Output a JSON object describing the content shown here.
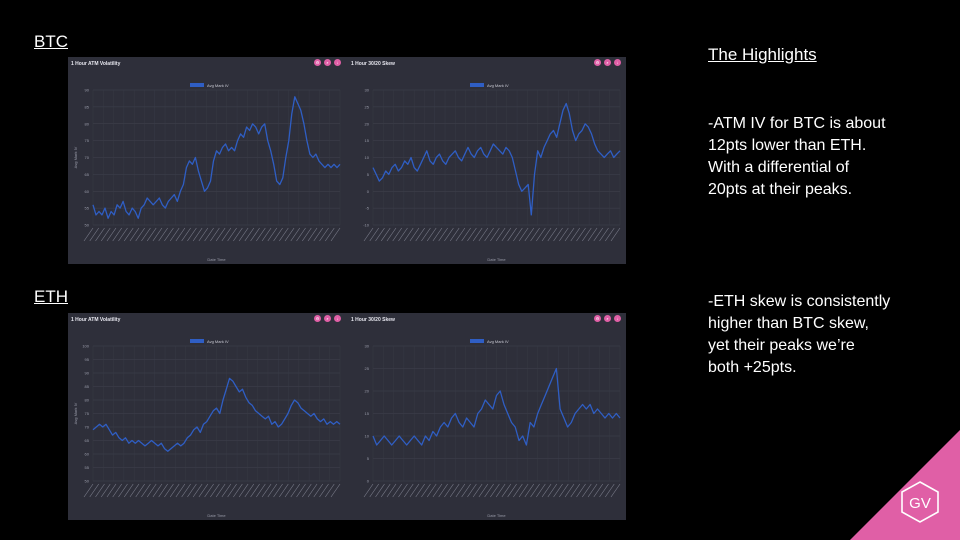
{
  "sections": [
    {
      "label": "BTC"
    },
    {
      "label": "ETH"
    }
  ],
  "highlights": {
    "title": "The Highlights",
    "note1": [
      "-ATM IV for BTC is about",
      "12pts lower than ETH.",
      "With a differential of",
      "20pts at their peaks."
    ],
    "note2": [
      "-ETH skew is consistently",
      "higher than BTC skew,",
      "yet their peaks we’re",
      "both +25pts."
    ]
  },
  "logo": {
    "text": "GV",
    "color": "#e05fa6"
  },
  "colors": {
    "panel": "#2e2f3a",
    "line": "#2f5ec4",
    "accent": "#e05fa6"
  },
  "chart_data": [
    {
      "id": "btc-atm",
      "type": "line",
      "title": "1 Hour ATM Volatility",
      "legend": "Avg Mark IV",
      "xlabel": "Date Time",
      "ylabel": "Avg Mark IV",
      "ylim": [
        50,
        90
      ],
      "yticks": [
        50,
        55,
        60,
        65,
        70,
        75,
        80,
        85,
        90
      ],
      "y": [
        56,
        53,
        54,
        53,
        55,
        52,
        54,
        53,
        56,
        55,
        57,
        54,
        53,
        55,
        54,
        52,
        55,
        56,
        58,
        57,
        56,
        57,
        58,
        56,
        55,
        57,
        58,
        59,
        57,
        60,
        62,
        67,
        69,
        68,
        70,
        66,
        63,
        60,
        61,
        63,
        69,
        72,
        71,
        73,
        74,
        72,
        73,
        72,
        75,
        77,
        76,
        79,
        78,
        80,
        79,
        77,
        79,
        80,
        75,
        72,
        68,
        63,
        62,
        64,
        70,
        75,
        83,
        88,
        86,
        84,
        80,
        75,
        71,
        70,
        71,
        69,
        68,
        67,
        68,
        67,
        68,
        67,
        68
      ]
    },
    {
      "id": "btc-skew",
      "type": "line",
      "title": "1 Hour 30/20 Skew",
      "legend": "Avg Mark IV",
      "xlabel": "Date Time",
      "ylabel": "",
      "ylim": [
        -10,
        30
      ],
      "yticks": [
        -10,
        -5,
        0,
        5,
        10,
        15,
        20,
        25,
        30
      ],
      "y": [
        7,
        5,
        3,
        4,
        6,
        5,
        7,
        8,
        6,
        7,
        9,
        8,
        10,
        7,
        6,
        8,
        10,
        12,
        9,
        8,
        10,
        11,
        9,
        8,
        10,
        11,
        12,
        10,
        9,
        11,
        13,
        11,
        10,
        12,
        13,
        11,
        10,
        12,
        14,
        13,
        12,
        11,
        13,
        12,
        10,
        6,
        2,
        0,
        1,
        2,
        -7,
        5,
        12,
        10,
        13,
        15,
        17,
        18,
        16,
        20,
        24,
        26,
        23,
        18,
        15,
        17,
        18,
        20,
        19,
        17,
        14,
        12,
        11,
        10,
        11,
        12,
        10,
        11,
        12
      ]
    },
    {
      "id": "eth-atm",
      "type": "line",
      "title": "1 Hour ATM Volatility",
      "legend": "Avg Mark IV",
      "xlabel": "Date Time",
      "ylabel": "Avg Mark IV",
      "ylim": [
        50,
        100
      ],
      "yticks": [
        50,
        55,
        60,
        65,
        70,
        75,
        80,
        85,
        90,
        95,
        100
      ],
      "y": [
        69,
        70,
        71,
        70,
        71,
        69,
        67,
        68,
        66,
        65,
        66,
        64,
        65,
        64,
        65,
        64,
        63,
        64,
        65,
        64,
        63,
        64,
        62,
        61,
        62,
        63,
        64,
        63,
        64,
        66,
        67,
        69,
        70,
        68,
        71,
        72,
        74,
        76,
        77,
        75,
        80,
        84,
        88,
        87,
        85,
        83,
        84,
        81,
        79,
        78,
        76,
        75,
        74,
        73,
        74,
        71,
        72,
        70,
        71,
        73,
        75,
        78,
        80,
        79,
        77,
        76,
        75,
        74,
        75,
        73,
        72,
        73,
        71,
        72,
        71,
        72,
        71
      ]
    },
    {
      "id": "eth-skew",
      "type": "line",
      "title": "1 Hour 30/20 Skew",
      "legend": "Avg Mark IV",
      "xlabel": "Date Time",
      "ylabel": "",
      "ylim": [
        0,
        30
      ],
      "yticks": [
        0,
        5,
        10,
        15,
        20,
        25,
        30
      ],
      "y": [
        10,
        8,
        9,
        10,
        9,
        8,
        9,
        10,
        9,
        8,
        9,
        10,
        9,
        8,
        10,
        9,
        11,
        10,
        12,
        13,
        12,
        14,
        15,
        13,
        12,
        14,
        13,
        12,
        15,
        16,
        18,
        17,
        16,
        19,
        20,
        17,
        15,
        13,
        12,
        9,
        10,
        8,
        13,
        12,
        15,
        17,
        19,
        21,
        23,
        25,
        16,
        14,
        12,
        13,
        15,
        16,
        17,
        16,
        17,
        15,
        16,
        15,
        14,
        15,
        14,
        15,
        14
      ]
    }
  ]
}
